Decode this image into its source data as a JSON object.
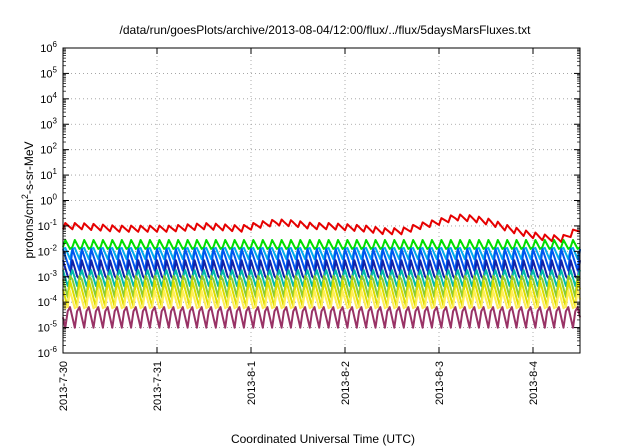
{
  "chart_data": {
    "type": "line",
    "title": "/data/run/goesPlots/archive/2013-08-04/12:00/flux/../flux/5daysMarsFluxes.txt",
    "xlabel": "Coordinated Universal Time (UTC)",
    "ylabel_parts": [
      "protons/cm",
      "2",
      "-s-sr-MeV"
    ],
    "y_scale": "log",
    "ylim_exp": [
      -6,
      6
    ],
    "y_tick_exponents": [
      -6,
      -5,
      -4,
      -3,
      -2,
      -1,
      0,
      1,
      2,
      3,
      4,
      5,
      6
    ],
    "y_tick_base": "10",
    "x_ticks": [
      "2013-7-30",
      "2013-7-31",
      "2013-8-1",
      "2013-8-2",
      "2013-8-3",
      "2013-8-4"
    ],
    "x_range_days": [
      0,
      5.5
    ],
    "grid": true,
    "series": [
      {
        "color": "#e60000",
        "log_base": [
          -1.0,
          -1.0,
          -1.05,
          -1.1,
          -1.1,
          -1.1,
          -1.1,
          -1.05,
          -1.0,
          -1.05,
          -1.1,
          -0.95,
          -0.85,
          -0.9,
          -1.0,
          -1.0,
          -1.05,
          -1.1,
          -1.2,
          -1.2,
          -1.0,
          -0.85,
          -0.65,
          -0.7,
          -0.85,
          -1.1,
          -1.3,
          -1.45,
          -1.5,
          -1.1
        ],
        "osc": 0.13
      },
      {
        "color": "#00dd00",
        "log_base": -1.75,
        "osc": 0.28
      },
      {
        "color": "#00aaee",
        "log_base": -2.05,
        "osc": 0.35
      },
      {
        "color": "#0055ee",
        "log_base": -2.35,
        "osc": 0.45
      },
      {
        "color": "#1122aa",
        "log_base": -2.75,
        "osc": 0.5
      },
      {
        "color": "#00bbaa",
        "log_base": -3.05,
        "osc": 0.5
      },
      {
        "color": "#88cc33",
        "log_base": -3.35,
        "osc": 0.55
      },
      {
        "color": "#dddd00",
        "log_base": -3.65,
        "osc": 0.55
      },
      {
        "color": "#ffee55",
        "log_base": -3.95,
        "osc": 0.55
      },
      {
        "color": "#993366",
        "log_base": -4.55,
        "osc": 0.65
      }
    ]
  }
}
